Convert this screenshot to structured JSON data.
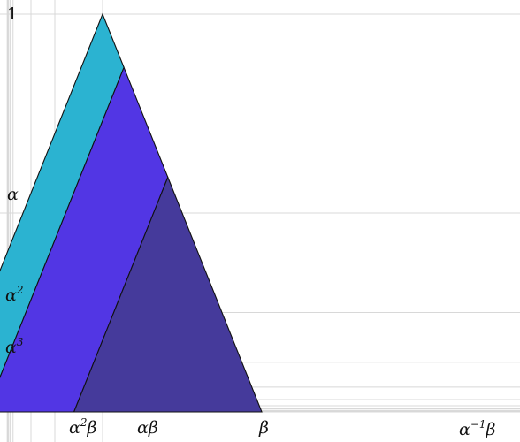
{
  "alpha": 0.5,
  "beta": 0.3,
  "levels": 10,
  "colors": {
    "top": "#2bb3d1",
    "middle": "#5236e4",
    "bottom": "#453a9b",
    "grid": "#d8d8d8",
    "outline": "#111111"
  },
  "y_labels": [
    {
      "text": "1"
    },
    {
      "base": "α",
      "exp": ""
    },
    {
      "base": "α",
      "exp": "2"
    },
    {
      "base": "α",
      "exp": "3"
    }
  ],
  "x_labels": [
    {
      "base": "α",
      "exp": "2",
      "tail": "β"
    },
    {
      "base": "αβ",
      "exp": "",
      "tail": ""
    },
    {
      "base": "β",
      "exp": "",
      "tail": ""
    },
    {
      "base": "α",
      "exp": "−1",
      "tail": "β"
    }
  ]
}
